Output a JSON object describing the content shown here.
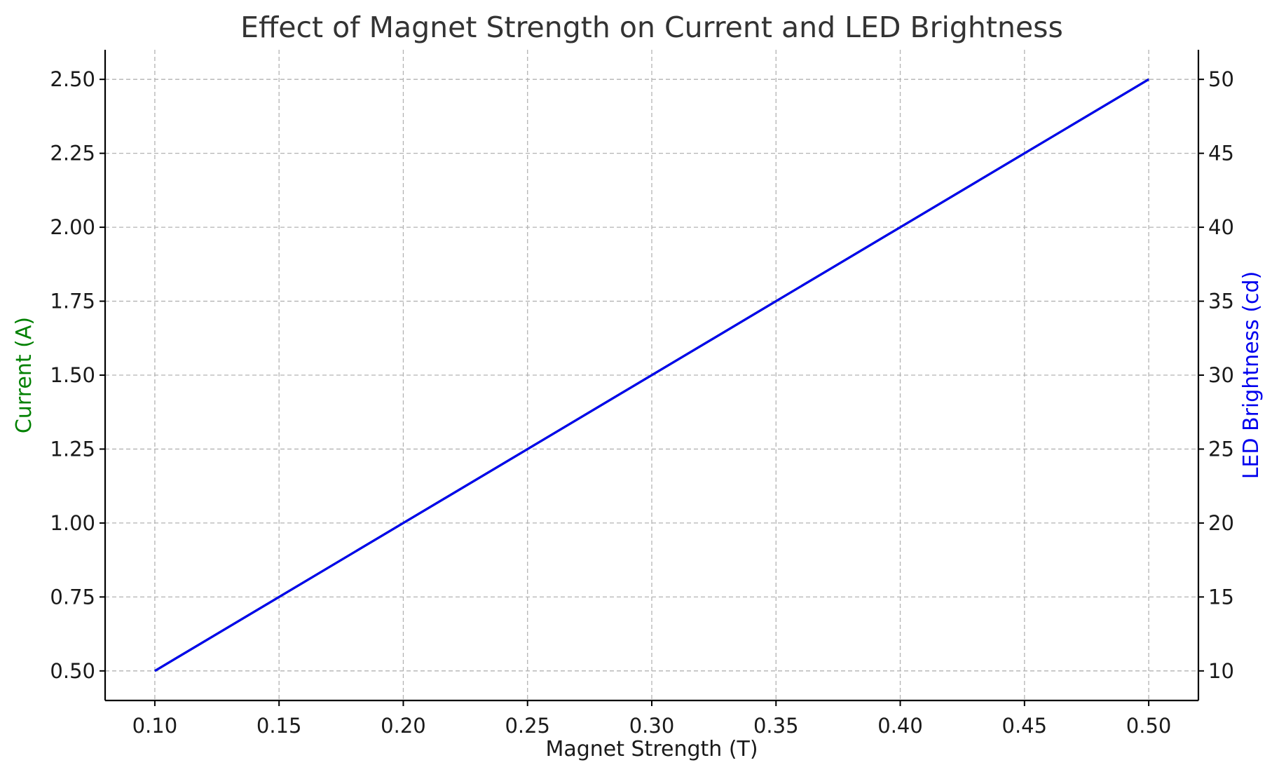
{
  "chart_data": {
    "type": "line",
    "title": "Effect of Magnet Strength on Current and LED Brightness",
    "xlabel": "Magnet Strength (T)",
    "ylabel_left": "Current (A)",
    "ylabel_right": "LED Brightness (cd)",
    "x": [
      0.1,
      0.15,
      0.2,
      0.25,
      0.3,
      0.35,
      0.4,
      0.45,
      0.5
    ],
    "x_tick_labels": [
      "0.10",
      "0.15",
      "0.20",
      "0.25",
      "0.30",
      "0.35",
      "0.40",
      "0.45",
      "0.50"
    ],
    "y_left_tick_labels": [
      "0.50",
      "0.75",
      "1.00",
      "1.25",
      "1.50",
      "1.75",
      "2.00",
      "2.25",
      "2.50"
    ],
    "y_left_ticks": [
      0.5,
      0.75,
      1.0,
      1.25,
      1.5,
      1.75,
      2.0,
      2.25,
      2.5
    ],
    "y_right_tick_labels": [
      "10",
      "15",
      "20",
      "25",
      "30",
      "35",
      "40",
      "45",
      "50"
    ],
    "y_right_ticks": [
      10,
      15,
      20,
      25,
      30,
      35,
      40,
      45,
      50
    ],
    "xlim": [
      0.08,
      0.52
    ],
    "ylim_left": [
      0.4,
      2.6
    ],
    "ylim_right": [
      8,
      52
    ],
    "grid": true,
    "series": [
      {
        "axis": "left",
        "values": [
          0.5,
          0.75,
          1.0,
          1.25,
          1.5,
          1.75,
          2.0,
          2.25,
          2.5
        ],
        "color": "#008000"
      },
      {
        "axis": "right",
        "values": [
          10,
          15,
          20,
          25,
          30,
          35,
          40,
          45,
          50
        ],
        "color": "#0000ee"
      }
    ],
    "colors": {
      "left_label": "#008000",
      "right_label": "#0000ee"
    }
  }
}
